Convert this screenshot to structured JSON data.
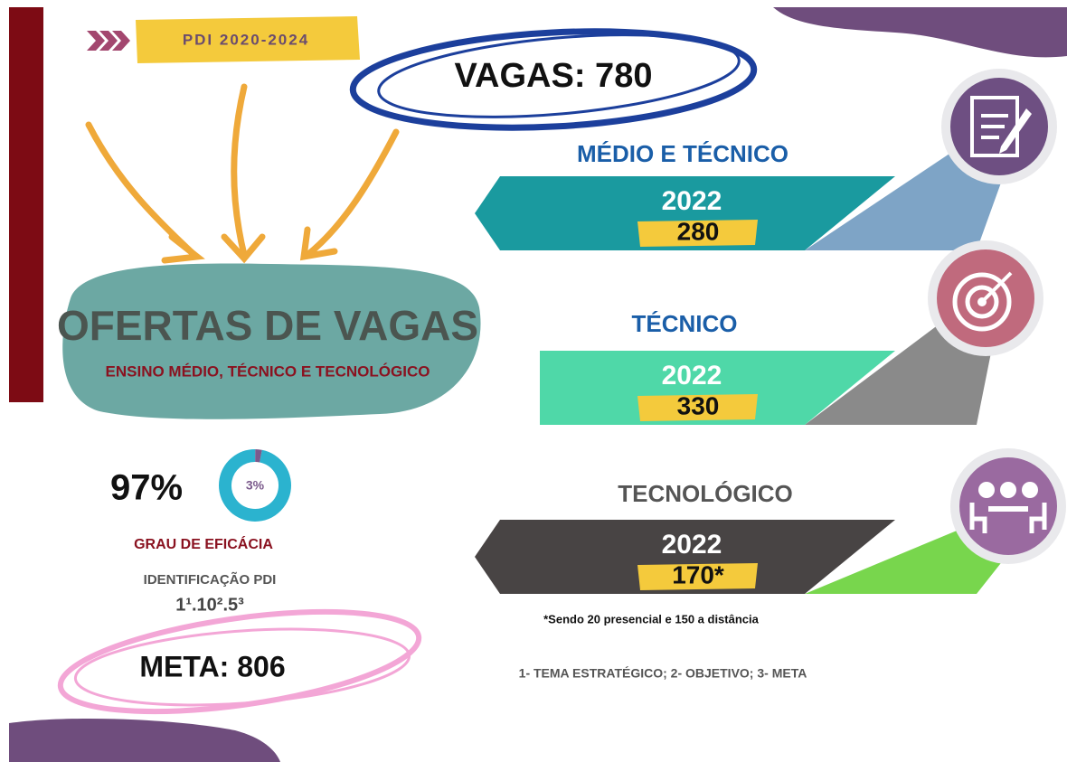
{
  "header": {
    "tag": "PDI 2020-2024",
    "total": "VAGAS: 780"
  },
  "main": {
    "title": "OFERTAS DE VAGAS",
    "subtitle": "ENSINO MÉDIO, TÉCNICO E TECNOLÓGICO"
  },
  "offers": [
    {
      "title": "MÉDIO  E TÉCNICO",
      "year": "2022",
      "count": "280"
    },
    {
      "title": "TÉCNICO",
      "year": "2022",
      "count": "330"
    },
    {
      "title": "TECNOLÓGICO",
      "year": "2022",
      "count": "170*"
    }
  ],
  "efficacy": {
    "values": [
      97,
      3
    ],
    "value_labels": [
      "97%",
      "3%"
    ],
    "label": "GRAU DE EFICÁCIA"
  },
  "identification": {
    "label": "IDENTIFICAÇÃO PDI",
    "code": "1¹.10².5³"
  },
  "goal": "META: 806",
  "footnote": "*Sendo 20  presencial e 150 a distância",
  "legend": "1- TEMA ESTRATÉGICO; 2- OBJETIVO; 3- META"
}
